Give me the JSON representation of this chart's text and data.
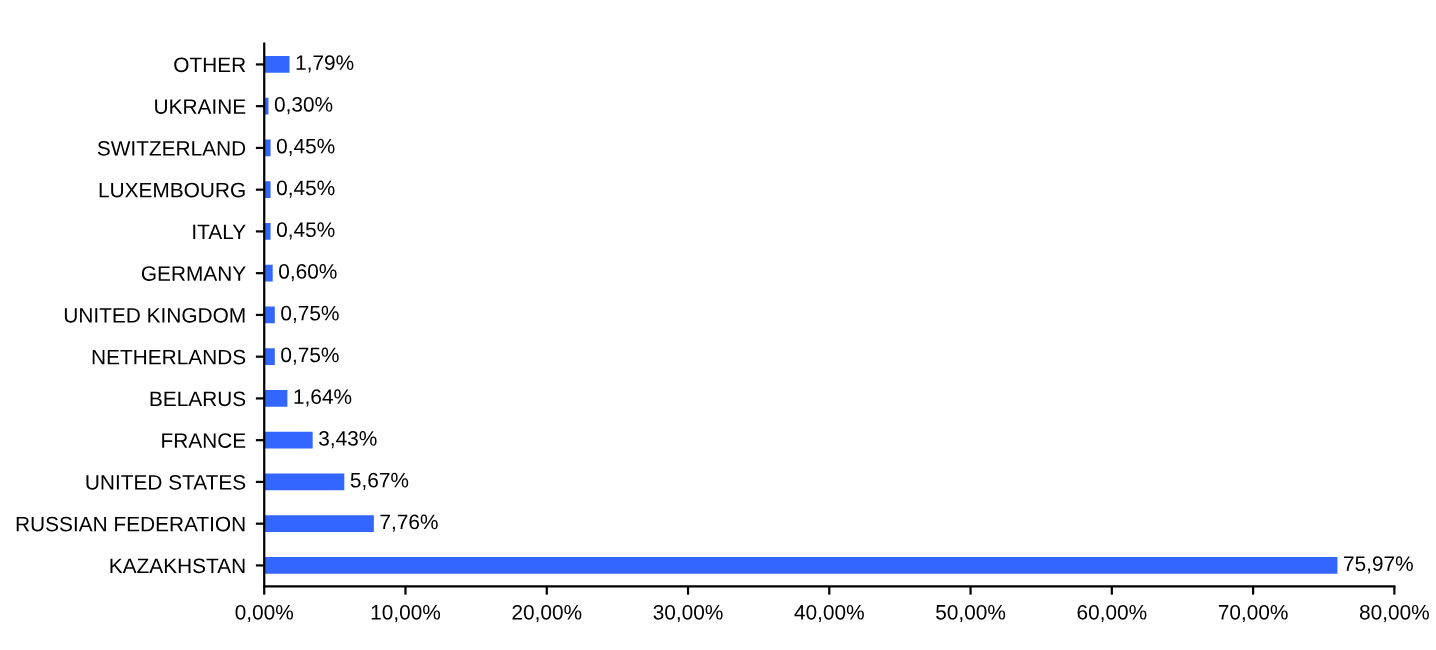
{
  "chart_data": {
    "type": "bar",
    "orientation": "horizontal",
    "categories": [
      "OTHER",
      "UKRAINE",
      "SWITZERLAND",
      "LUXEMBOURG",
      "ITALY",
      "GERMANY",
      "UNITED KINGDOM",
      "NETHERLANDS",
      "BELARUS",
      "FRANCE",
      "UNITED STATES",
      "RUSSIAN FEDERATION",
      "KAZAKHSTAN"
    ],
    "values": [
      1.79,
      0.3,
      0.45,
      0.45,
      0.45,
      0.6,
      0.75,
      0.75,
      1.64,
      3.43,
      5.67,
      7.76,
      75.97
    ],
    "value_labels": [
      "1,79%",
      "0,30%",
      "0,45%",
      "0,45%",
      "0,45%",
      "0,60%",
      "0,75%",
      "0,75%",
      "1,64%",
      "3,43%",
      "5,67%",
      "7,76%",
      "75,97%"
    ],
    "color": "#3366ff",
    "xlim": [
      0,
      80
    ],
    "xticks": [
      {
        "value": 0,
        "label": "0,00%"
      },
      {
        "value": 10,
        "label": "10,00%"
      },
      {
        "value": 20,
        "label": "20,00%"
      },
      {
        "value": 30,
        "label": "30,00%"
      },
      {
        "value": 40,
        "label": "40,00%"
      },
      {
        "value": 50,
        "label": "50,00%"
      },
      {
        "value": 60,
        "label": "60,00%"
      },
      {
        "value": 70,
        "label": "70,00%"
      },
      {
        "value": 80,
        "label": "80,00%"
      }
    ],
    "grid": false,
    "legend": false
  }
}
